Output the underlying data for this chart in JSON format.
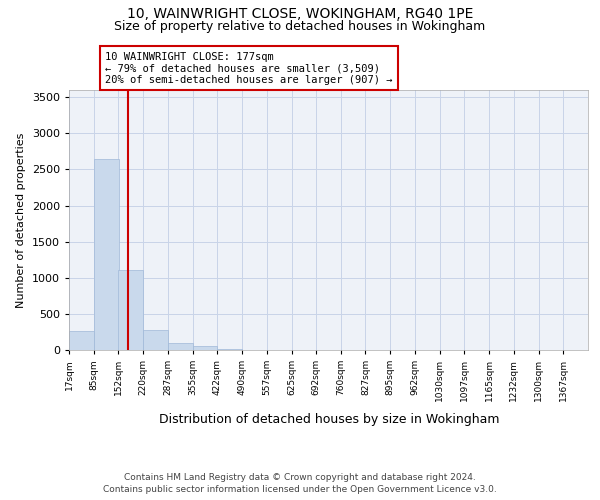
{
  "title1": "10, WAINWRIGHT CLOSE, WOKINGHAM, RG40 1PE",
  "title2": "Size of property relative to detached houses in Wokingham",
  "xlabel": "Distribution of detached houses by size in Wokingham",
  "ylabel": "Number of detached properties",
  "bar_color": "#c9d9ec",
  "bar_edge_color": "#a0b8d8",
  "grid_color": "#c8d4e8",
  "background_color": "#eef2f8",
  "property_size": 177,
  "red_line_color": "#cc0000",
  "annotation_line1": "10 WAINWRIGHT CLOSE: 177sqm",
  "annotation_line2": "← 79% of detached houses are smaller (3,509)",
  "annotation_line3": "20% of semi-detached houses are larger (907) →",
  "annotation_box_color": "white",
  "annotation_edge_color": "#cc0000",
  "bins_left": [
    17,
    85,
    152,
    220,
    287,
    355,
    422,
    490,
    557,
    625,
    692,
    760,
    827,
    895,
    962,
    1030,
    1097,
    1165,
    1232,
    1300
  ],
  "bin_width": 67.5,
  "bar_heights": [
    270,
    2640,
    1110,
    280,
    100,
    50,
    20,
    0,
    0,
    0,
    0,
    0,
    0,
    0,
    0,
    0,
    0,
    0,
    0,
    0
  ],
  "tick_labels": [
    "17sqm",
    "85sqm",
    "152sqm",
    "220sqm",
    "287sqm",
    "355sqm",
    "422sqm",
    "490sqm",
    "557sqm",
    "625sqm",
    "692sqm",
    "760sqm",
    "827sqm",
    "895sqm",
    "962sqm",
    "1030sqm",
    "1097sqm",
    "1165sqm",
    "1232sqm",
    "1300sqm",
    "1367sqm"
  ],
  "ylim": [
    0,
    3600
  ],
  "yticks": [
    0,
    500,
    1000,
    1500,
    2000,
    2500,
    3000,
    3500
  ],
  "footer1": "Contains HM Land Registry data © Crown copyright and database right 2024.",
  "footer2": "Contains public sector information licensed under the Open Government Licence v3.0."
}
